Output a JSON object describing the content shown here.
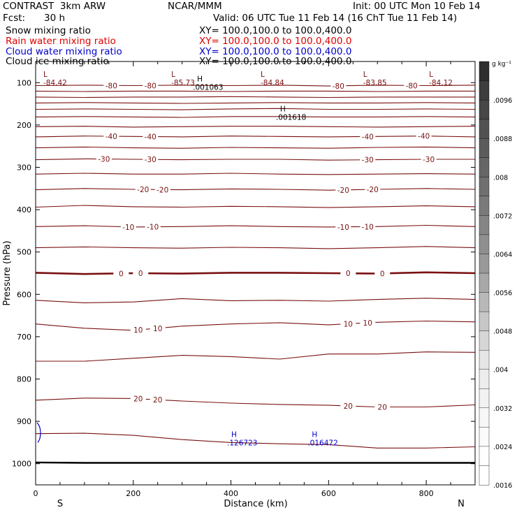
{
  "header": {
    "title": "CONTRAST  3km ARW",
    "org": "NCAR/MMM",
    "init": "Init: 00 UTC Mon 10 Feb 14",
    "fcst_label": "Fcst:",
    "fcst_value": "30 h",
    "valid": "Valid: 06 UTC Tue 11 Feb 14 (16 ChT Tue 11 Feb 14)"
  },
  "fields": [
    {
      "name": "Snow mixing ratio",
      "xy": "XY= 100.0,100.0 to 100.0,400.0",
      "color": "#000000"
    },
    {
      "name": "Rain water mixing ratio",
      "xy": "XY= 100.0,100.0 to 100.0,400.0",
      "color": "#e00000"
    },
    {
      "name": "Cloud water mixing ratio",
      "xy": "XY= 100.0,100.0 to 100.0,400.0",
      "color": "#0000cc"
    },
    {
      "name": "Cloud ice mixing ratio",
      "xy": "XY= 100.0,100.0 to 100.0,400.0",
      "color": "#000000"
    }
  ],
  "chart_data": {
    "type": "contour",
    "xlabel": "Distance (km)",
    "ylabel": "Pressure (hPa)",
    "xlim": [
      0,
      900
    ],
    "ylim": [
      1050,
      50
    ],
    "x_ticks": [
      0,
      200,
      400,
      600,
      800
    ],
    "y_ticks": [
      100,
      200,
      300,
      400,
      500,
      600,
      700,
      800,
      900,
      1000
    ],
    "x_end_labels": {
      "left": "S",
      "right": "N"
    },
    "colorbar": {
      "unit": "g kg⁻¹",
      "labels": [
        ".0096",
        ".0088",
        ".008",
        ".0072",
        ".0064",
        ".0056",
        ".0048",
        ".004",
        ".0032",
        ".0024",
        ".0016"
      ],
      "bands": [
        0.82,
        0.76,
        0.72,
        0.68,
        0.64,
        0.6,
        0.56,
        0.52,
        0.48,
        0.44,
        0.4,
        0.34,
        0.28,
        0.22,
        0.16,
        0.1,
        0.07,
        0.05,
        0.03,
        0.015,
        0.005,
        0.0
      ]
    },
    "temperature_contours": [
      {
        "p": [
          107,
          106,
          107,
          106,
          107,
          106,
          108,
          106,
          107,
          106
        ],
        "labels": [
          {
            "x": 155,
            "text": "-80"
          },
          {
            "x": 235,
            "text": "-80"
          },
          {
            "x": 620,
            "text": "-80"
          },
          {
            "x": 770,
            "text": "-80"
          }
        ]
      },
      {
        "p": [
          120,
          121,
          120,
          120,
          121,
          120,
          120,
          121,
          120,
          120
        ],
        "labels": []
      },
      {
        "p": [
          134,
          135,
          134,
          134,
          133,
          134,
          135,
          134,
          134,
          134
        ],
        "labels": []
      },
      {
        "p": [
          148,
          147,
          148,
          149,
          148,
          147,
          148,
          148,
          147,
          148
        ],
        "labels": []
      },
      {
        "p": [
          163,
          162,
          163,
          164,
          162,
          161,
          163,
          163,
          162,
          163
        ],
        "labels": []
      },
      {
        "p": [
          181,
          180,
          181,
          182,
          180,
          180,
          181,
          181,
          180,
          181
        ],
        "labels": []
      },
      {
        "p": [
          204,
          203,
          205,
          204,
          203,
          203,
          204,
          205,
          204,
          203
        ],
        "labels": []
      },
      {
        "p": [
          228,
          226,
          227,
          228,
          226,
          227,
          228,
          227,
          226,
          228
        ],
        "labels": [
          {
            "x": 155,
            "text": "-40"
          },
          {
            "x": 235,
            "text": "-40"
          },
          {
            "x": 680,
            "text": "-40"
          },
          {
            "x": 795,
            "text": "-40"
          }
        ]
      },
      {
        "p": [
          254,
          252,
          254,
          255,
          253,
          254,
          255,
          253,
          252,
          254
        ],
        "labels": []
      },
      {
        "p": [
          282,
          280,
          281,
          282,
          281,
          281,
          283,
          282,
          281,
          281
        ],
        "labels": [
          {
            "x": 140,
            "text": "-30"
          },
          {
            "x": 235,
            "text": "-30"
          },
          {
            "x": 680,
            "text": "-30"
          },
          {
            "x": 805,
            "text": "-30"
          }
        ]
      },
      {
        "p": [
          316,
          314,
          316,
          316,
          314,
          316,
          317,
          316,
          315,
          316
        ],
        "labels": []
      },
      {
        "p": [
          353,
          350,
          352,
          353,
          351,
          352,
          354,
          352,
          350,
          352
        ],
        "labels": [
          {
            "x": 220,
            "text": "-20"
          },
          {
            "x": 260,
            "text": "-20"
          },
          {
            "x": 630,
            "text": "-20"
          },
          {
            "x": 690,
            "text": "-20"
          }
        ]
      },
      {
        "p": [
          394,
          390,
          393,
          394,
          392,
          393,
          395,
          393,
          391,
          393
        ],
        "labels": []
      },
      {
        "p": [
          440,
          438,
          441,
          440,
          438,
          440,
          441,
          440,
          437,
          440
        ],
        "labels": [
          {
            "x": 190,
            "text": "-10"
          },
          {
            "x": 240,
            "text": "-10"
          },
          {
            "x": 630,
            "text": "-10"
          },
          {
            "x": 680,
            "text": "-10"
          }
        ]
      },
      {
        "p": [
          490,
          488,
          490,
          491,
          489,
          490,
          492,
          490,
          487,
          490
        ],
        "labels": []
      },
      {
        "p": [
          549,
          552,
          550,
          551,
          549,
          549,
          550,
          551,
          548,
          550
        ],
        "labels": [
          {
            "x": 175,
            "text": "0"
          },
          {
            "x": 215,
            "text": "0"
          },
          {
            "x": 640,
            "text": "0"
          },
          {
            "x": 710,
            "text": "0"
          }
        ],
        "bold": true
      },
      {
        "p": [
          614,
          620,
          618,
          610,
          615,
          614,
          616,
          612,
          609,
          612
        ],
        "labels": []
      },
      {
        "p": [
          670,
          680,
          685,
          675,
          670,
          667,
          672,
          666,
          663,
          665
        ],
        "labels": [
          {
            "x": 210,
            "text": "10"
          },
          {
            "x": 250,
            "text": "10"
          },
          {
            "x": 640,
            "text": "10"
          },
          {
            "x": 680,
            "text": "10"
          }
        ]
      },
      {
        "p": [
          758,
          758,
          751,
          744,
          747,
          753,
          741,
          741,
          736,
          737
        ],
        "labels": []
      },
      {
        "p": [
          850,
          845,
          846,
          852,
          857,
          860,
          862,
          866,
          866,
          861
        ],
        "labels": [
          {
            "x": 210,
            "text": "20"
          },
          {
            "x": 250,
            "text": "20"
          },
          {
            "x": 640,
            "text": "20"
          },
          {
            "x": 710,
            "text": "20"
          }
        ]
      },
      {
        "p": [
          929,
          928,
          933,
          943,
          950,
          953,
          955,
          963,
          963,
          960
        ],
        "labels": []
      }
    ],
    "extrema": [
      {
        "kind": "L",
        "x": 30,
        "p": 86,
        "value": "-84.42"
      },
      {
        "kind": "L",
        "x": 292,
        "p": 86,
        "value": "-85.73"
      },
      {
        "kind": "L",
        "x": 475,
        "p": 86,
        "value": "-84.84"
      },
      {
        "kind": "L",
        "x": 685,
        "p": 86,
        "value": "-83.85"
      },
      {
        "kind": "L",
        "x": 820,
        "p": 86,
        "value": "-84.12"
      },
      {
        "kind": "H",
        "x": 345,
        "p": 97,
        "value": ".001063",
        "note": "snow"
      },
      {
        "kind": "H",
        "x": 515,
        "p": 168,
        "value": ".001618",
        "note": "snow"
      },
      {
        "kind": "H",
        "x": 415,
        "p": 937,
        "value": ".126723",
        "note": "cloud water"
      },
      {
        "kind": "H",
        "x": 580,
        "p": 937,
        "value": ".016472",
        "note": "cloud water"
      }
    ],
    "surface_p": [
      997,
      998,
      998,
      998,
      998,
      998,
      998,
      998,
      998,
      998
    ]
  }
}
